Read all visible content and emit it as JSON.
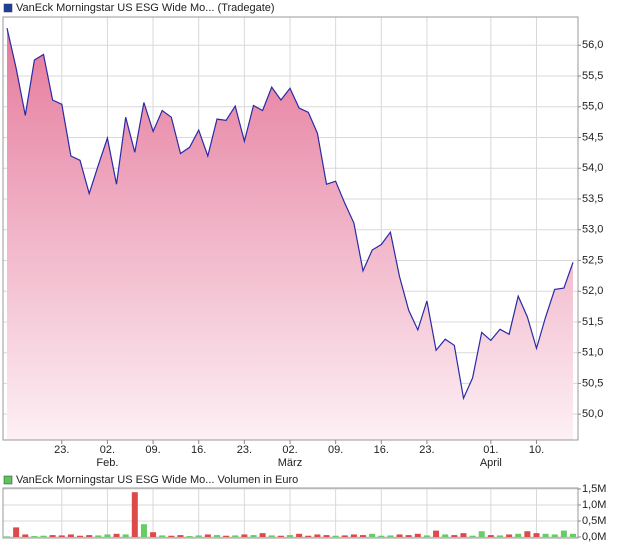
{
  "chart_data": [
    {
      "type": "area",
      "title": "VanEck Morningstar US ESG Wide Mo... (Tradegate)",
      "legend_color": "#1f3f9f",
      "color": "#2a2aa6",
      "fill_top": "#e5799c",
      "fill_bottom": "#fdf0f4",
      "categories": [
        null,
        null,
        null,
        null,
        null,
        null,
        "23.",
        null,
        null,
        null,
        null,
        "02.",
        null,
        null,
        null,
        null,
        "09.",
        null,
        null,
        null,
        null,
        "16.",
        null,
        null,
        null,
        null,
        "23.",
        null,
        null,
        null,
        null,
        "02.",
        null,
        null,
        null,
        null,
        "09.",
        null,
        null,
        null,
        null,
        "16.",
        null,
        null,
        null,
        null,
        "23.",
        null,
        null,
        null,
        null,
        null,
        null,
        "01.",
        null,
        null,
        null,
        null,
        "10.",
        null,
        null,
        null,
        null
      ],
      "month_labels": [
        null,
        null,
        null,
        null,
        null,
        null,
        null,
        null,
        null,
        null,
        null,
        "Feb.",
        null,
        null,
        null,
        null,
        null,
        null,
        null,
        null,
        null,
        null,
        null,
        null,
        null,
        null,
        null,
        null,
        null,
        null,
        null,
        "März",
        null,
        null,
        null,
        null,
        null,
        null,
        null,
        null,
        null,
        null,
        null,
        null,
        null,
        null,
        null,
        null,
        null,
        null,
        null,
        null,
        null,
        "April",
        null,
        null,
        null,
        null,
        null,
        null,
        null,
        null,
        null
      ],
      "values": [
        56.28,
        55.63,
        54.86,
        55.76,
        55.85,
        55.11,
        55.04,
        54.2,
        54.13,
        53.59,
        54.05,
        54.49,
        53.74,
        54.83,
        54.26,
        55.07,
        54.6,
        54.94,
        54.83,
        54.24,
        54.34,
        54.62,
        54.2,
        54.8,
        54.78,
        55.01,
        54.44,
        55.02,
        54.94,
        55.32,
        55.11,
        55.3,
        54.98,
        54.91,
        54.57,
        53.74,
        53.79,
        53.43,
        53.11,
        52.33,
        52.67,
        52.76,
        52.96,
        52.24,
        51.69,
        51.37,
        51.84,
        51.04,
        51.22,
        51.12,
        50.26,
        50.59,
        51.33,
        51.2,
        51.38,
        51.3,
        51.92,
        51.58,
        51.07,
        51.58,
        52.03,
        52.05,
        52.47
      ],
      "ylim": [
        49.58,
        56.46
      ],
      "yticks": [
        {
          "value": 50,
          "label": "50,0"
        },
        {
          "value": 50.5,
          "label": "50,5"
        },
        {
          "value": 51,
          "label": "51,0"
        },
        {
          "value": 51.5,
          "label": "51,5"
        },
        {
          "value": 52,
          "label": "52,0"
        },
        {
          "value": 52.5,
          "label": "52,5"
        },
        {
          "value": 53,
          "label": "53,0"
        },
        {
          "value": 53.5,
          "label": "53,5"
        },
        {
          "value": 54,
          "label": "54,0"
        },
        {
          "value": 54.5,
          "label": "54,5"
        },
        {
          "value": 55,
          "label": "55,0"
        },
        {
          "value": 55.5,
          "label": "55,5"
        },
        {
          "value": 56,
          "label": "56,0"
        }
      ],
      "grid": true
    },
    {
      "type": "bar",
      "title": "VanEck Morningstar US ESG Wide Mo... Volumen in Euro",
      "legend_color": "#5cc45c",
      "values": [
        20000,
        300000,
        80000,
        30000,
        40000,
        60000,
        50000,
        80000,
        40000,
        60000,
        50000,
        80000,
        100000,
        80000,
        1400000,
        400000,
        150000,
        50000,
        40000,
        60000,
        30000,
        50000,
        80000,
        60000,
        40000,
        50000,
        80000,
        60000,
        120000,
        50000,
        40000,
        60000,
        100000,
        40000,
        80000,
        60000,
        40000,
        50000,
        80000,
        60000,
        100000,
        40000,
        50000,
        80000,
        60000,
        100000,
        50000,
        200000,
        80000,
        60000,
        120000,
        40000,
        180000,
        60000,
        50000,
        80000,
        100000,
        180000,
        120000,
        100000,
        80000,
        200000,
        100000
      ],
      "colors": [
        "#66cc66",
        "#dd4a4a",
        "#dd4a4a",
        "#66cc66",
        "#66cc66",
        "#dd4a4a",
        "#dd4a4a",
        "#dd4a4a",
        "#dd4a4a",
        "#dd4a4a",
        "#66cc66",
        "#66cc66",
        "#dd4a4a",
        "#66cc66",
        "#dd4a4a",
        "#66cc66",
        "#dd4a4a",
        "#66cc66",
        "#dd4a4a",
        "#dd4a4a",
        "#66cc66",
        "#66cc66",
        "#dd4a4a",
        "#66cc66",
        "#dd4a4a",
        "#66cc66",
        "#dd4a4a",
        "#66cc66",
        "#dd4a4a",
        "#66cc66",
        "#dd4a4a",
        "#66cc66",
        "#dd4a4a",
        "#dd4a4a",
        "#dd4a4a",
        "#dd4a4a",
        "#66cc66",
        "#dd4a4a",
        "#dd4a4a",
        "#dd4a4a",
        "#66cc66",
        "#66cc66",
        "#66cc66",
        "#dd4a4a",
        "#dd4a4a",
        "#dd4a4a",
        "#66cc66",
        "#dd4a4a",
        "#66cc66",
        "#dd4a4a",
        "#dd4a4a",
        "#66cc66",
        "#66cc66",
        "#dd4a4a",
        "#66cc66",
        "#dd4a4a",
        "#66cc66",
        "#dd4a4a",
        "#dd4a4a",
        "#66cc66",
        "#66cc66",
        "#66cc66",
        "#66cc66"
      ],
      "ylim": [
        0,
        1500000
      ],
      "yticks": [
        {
          "value": 0,
          "label": "0,0M"
        },
        {
          "value": 500000,
          "label": "0,5M"
        },
        {
          "value": 1000000,
          "label": "1,0M"
        },
        {
          "value": 1500000,
          "label": "1,5M"
        }
      ],
      "grid": true
    }
  ]
}
